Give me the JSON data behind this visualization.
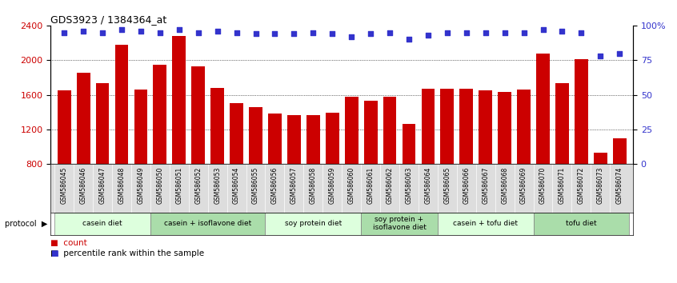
{
  "title": "GDS3923 / 1384364_at",
  "samples": [
    "GSM586045",
    "GSM586046",
    "GSM586047",
    "GSM586048",
    "GSM586049",
    "GSM586050",
    "GSM586051",
    "GSM586052",
    "GSM586053",
    "GSM586054",
    "GSM586055",
    "GSM586056",
    "GSM586057",
    "GSM586058",
    "GSM586059",
    "GSM586060",
    "GSM586061",
    "GSM586062",
    "GSM586063",
    "GSM586064",
    "GSM586065",
    "GSM586066",
    "GSM586067",
    "GSM586068",
    "GSM586069",
    "GSM586070",
    "GSM586071",
    "GSM586072",
    "GSM586073",
    "GSM586074"
  ],
  "counts": [
    1650,
    1850,
    1730,
    2180,
    1660,
    1950,
    2280,
    1930,
    1680,
    1500,
    1460,
    1380,
    1370,
    1370,
    1390,
    1580,
    1530,
    1580,
    1260,
    1670,
    1670,
    1670,
    1650,
    1630,
    1660,
    2080,
    1730,
    2010,
    930,
    1100
  ],
  "percentiles": [
    95,
    96,
    95,
    97,
    96,
    95,
    97,
    95,
    96,
    95,
    94,
    94,
    94,
    95,
    94,
    92,
    94,
    95,
    90,
    93,
    95,
    95,
    95,
    95,
    95,
    97,
    96,
    95,
    78,
    80
  ],
  "bar_color": "#cc0000",
  "dot_color": "#3333cc",
  "ylim_left": [
    800,
    2400
  ],
  "ylim_right": [
    0,
    100
  ],
  "yticks_left": [
    800,
    1200,
    1600,
    2000,
    2400
  ],
  "yticks_right": [
    0,
    25,
    50,
    75,
    100
  ],
  "ytick_labels_right": [
    "0",
    "25",
    "50",
    "75",
    "100%"
  ],
  "grid_values": [
    1200,
    1600,
    2000
  ],
  "protocol_groups": [
    {
      "label": "casein diet",
      "start": 0,
      "end": 5,
      "color": "#ddffdd"
    },
    {
      "label": "casein + isoflavone diet",
      "start": 5,
      "end": 11,
      "color": "#aaddaa"
    },
    {
      "label": "soy protein diet",
      "start": 11,
      "end": 16,
      "color": "#ddffdd"
    },
    {
      "label": "soy protein +\nisoflavone diet",
      "start": 16,
      "end": 20,
      "color": "#aaddaa"
    },
    {
      "label": "casein + tofu diet",
      "start": 20,
      "end": 25,
      "color": "#ddffdd"
    },
    {
      "label": "tofu diet",
      "start": 25,
      "end": 30,
      "color": "#aaddaa"
    }
  ],
  "legend_count_color": "#cc0000",
  "legend_dot_color": "#3333cc",
  "xlabel_bg_color": "#dddddd",
  "plot_bg_color": "#ffffff"
}
